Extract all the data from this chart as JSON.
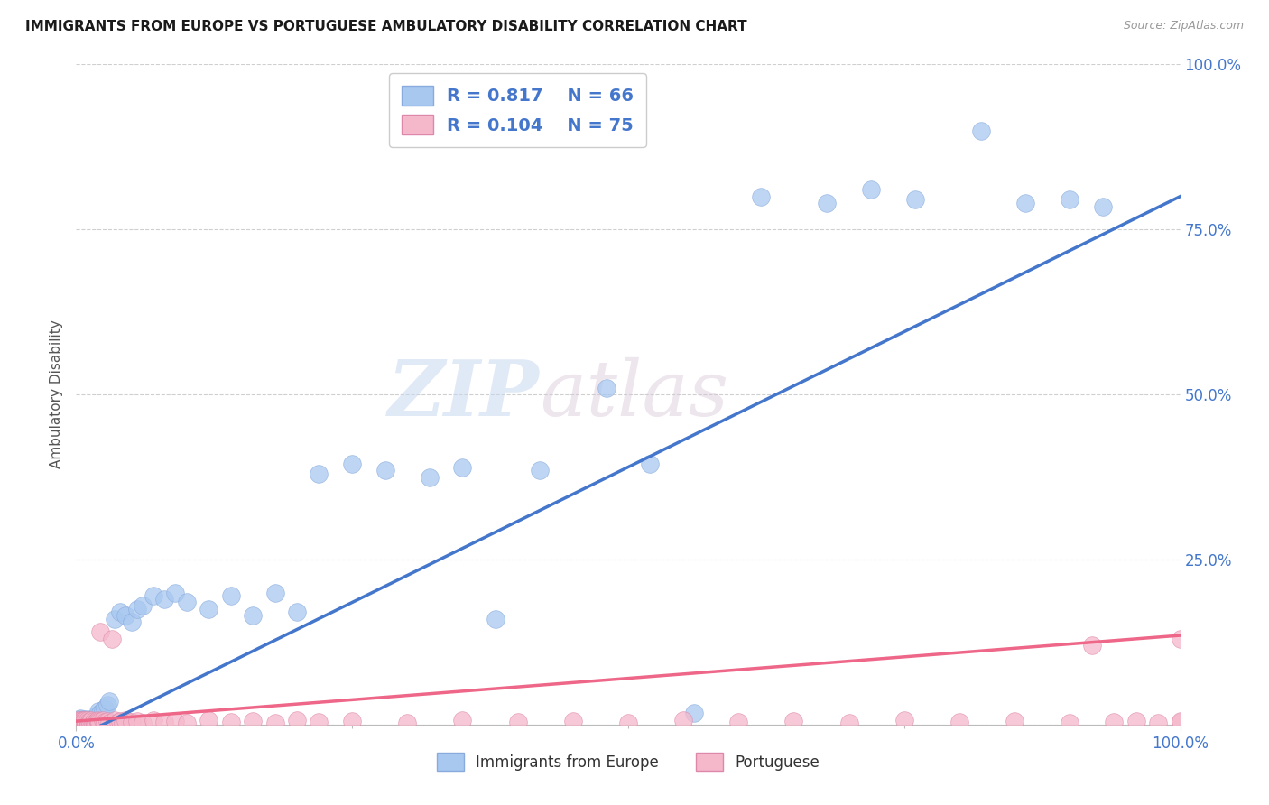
{
  "title": "IMMIGRANTS FROM EUROPE VS PORTUGUESE AMBULATORY DISABILITY CORRELATION CHART",
  "source": "Source: ZipAtlas.com",
  "ylabel": "Ambulatory Disability",
  "bg_color": "#ffffff",
  "blue_color": "#A8C8F0",
  "pink_color": "#F5B8CB",
  "blue_line_color": "#4477CC",
  "pink_line_color": "#EE6688",
  "axis_label_color": "#4477CC",
  "legend_label1": "Immigrants from Europe",
  "legend_label2": "Portuguese",
  "blue_x": [
    0.001,
    0.002,
    0.002,
    0.003,
    0.003,
    0.004,
    0.004,
    0.005,
    0.005,
    0.006,
    0.006,
    0.007,
    0.007,
    0.008,
    0.008,
    0.009,
    0.01,
    0.01,
    0.011,
    0.012,
    0.013,
    0.014,
    0.015,
    0.016,
    0.017,
    0.018,
    0.019,
    0.02,
    0.022,
    0.024,
    0.026,
    0.028,
    0.03,
    0.035,
    0.04,
    0.045,
    0.05,
    0.055,
    0.06,
    0.07,
    0.08,
    0.09,
    0.1,
    0.12,
    0.14,
    0.16,
    0.18,
    0.2,
    0.22,
    0.25,
    0.28,
    0.32,
    0.35,
    0.38,
    0.42,
    0.48,
    0.52,
    0.56,
    0.62,
    0.68,
    0.72,
    0.76,
    0.82,
    0.86,
    0.9,
    0.93
  ],
  "blue_y": [
    0.005,
    0.003,
    0.007,
    0.004,
    0.008,
    0.005,
    0.009,
    0.004,
    0.006,
    0.003,
    0.007,
    0.005,
    0.008,
    0.004,
    0.006,
    0.003,
    0.005,
    0.008,
    0.004,
    0.006,
    0.003,
    0.007,
    0.005,
    0.004,
    0.006,
    0.01,
    0.015,
    0.02,
    0.018,
    0.022,
    0.025,
    0.03,
    0.035,
    0.16,
    0.17,
    0.165,
    0.155,
    0.175,
    0.18,
    0.195,
    0.19,
    0.2,
    0.185,
    0.175,
    0.195,
    0.165,
    0.2,
    0.17,
    0.38,
    0.395,
    0.385,
    0.375,
    0.39,
    0.16,
    0.385,
    0.51,
    0.395,
    0.018,
    0.8,
    0.79,
    0.81,
    0.795,
    0.9,
    0.79,
    0.795,
    0.785
  ],
  "pink_x": [
    0.001,
    0.002,
    0.002,
    0.003,
    0.003,
    0.004,
    0.004,
    0.005,
    0.005,
    0.006,
    0.006,
    0.007,
    0.007,
    0.008,
    0.008,
    0.009,
    0.01,
    0.01,
    0.011,
    0.012,
    0.013,
    0.014,
    0.015,
    0.016,
    0.017,
    0.018,
    0.019,
    0.02,
    0.021,
    0.022,
    0.024,
    0.026,
    0.028,
    0.03,
    0.032,
    0.035,
    0.038,
    0.04,
    0.042,
    0.045,
    0.05,
    0.055,
    0.06,
    0.07,
    0.08,
    0.09,
    0.1,
    0.12,
    0.14,
    0.16,
    0.18,
    0.2,
    0.22,
    0.25,
    0.3,
    0.35,
    0.4,
    0.45,
    0.5,
    0.55,
    0.6,
    0.65,
    0.7,
    0.75,
    0.8,
    0.85,
    0.9,
    0.92,
    0.94,
    0.96,
    0.98,
    1.0,
    1.0,
    1.0
  ],
  "pink_y": [
    0.004,
    0.003,
    0.006,
    0.003,
    0.005,
    0.004,
    0.006,
    0.003,
    0.005,
    0.004,
    0.006,
    0.003,
    0.005,
    0.004,
    0.006,
    0.003,
    0.004,
    0.006,
    0.003,
    0.005,
    0.004,
    0.006,
    0.003,
    0.005,
    0.003,
    0.004,
    0.006,
    0.005,
    0.004,
    0.14,
    0.006,
    0.004,
    0.005,
    0.003,
    0.13,
    0.006,
    0.004,
    0.005,
    0.003,
    0.006,
    0.004,
    0.005,
    0.003,
    0.006,
    0.004,
    0.005,
    0.003,
    0.006,
    0.004,
    0.005,
    0.003,
    0.006,
    0.004,
    0.005,
    0.003,
    0.006,
    0.004,
    0.005,
    0.003,
    0.006,
    0.004,
    0.005,
    0.003,
    0.006,
    0.004,
    0.005,
    0.003,
    0.12,
    0.004,
    0.005,
    0.003,
    0.13,
    0.004,
    0.005
  ],
  "blue_trend": [
    0.0,
    1.0,
    -0.02,
    0.8
  ],
  "pink_trend": [
    0.0,
    1.0,
    0.005,
    0.135
  ],
  "ytick_positions": [
    0.0,
    0.25,
    0.5,
    0.75,
    1.0
  ],
  "ytick_labels": [
    "",
    "25.0%",
    "50.0%",
    "75.0%",
    "100.0%"
  ],
  "xtick_positions": [
    0.0,
    1.0
  ],
  "xtick_labels": [
    "0.0%",
    "100.0%"
  ],
  "watermark_line1": "ZIP",
  "watermark_line2": "atlas"
}
